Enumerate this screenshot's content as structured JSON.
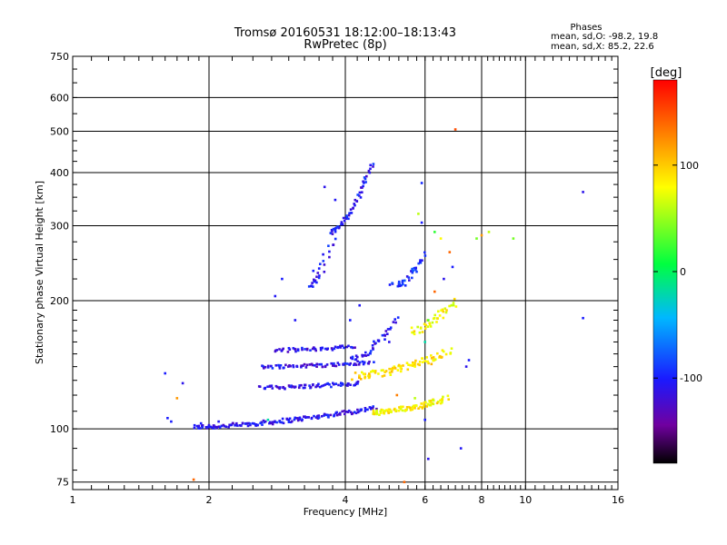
{
  "chart_data": {
    "type": "scatter",
    "title": "Tromsø 20160531 18:12:00–18:13:43",
    "subtitle": "RwPretec (8p)",
    "stats": {
      "heading": "Phases",
      "line1": "mean, sd,O: -98.2, 19.8",
      "line2": "mean, sd,X:  85.2, 22.6"
    },
    "xlabel": "Frequency [MHz]",
    "ylabel": "Stationary phase Virtual Height [km]",
    "x_scale": "log",
    "y_scale": "log",
    "xlim": [
      1,
      16
    ],
    "ylim": [
      72,
      750
    ],
    "x_ticks": [
      1,
      2,
      4,
      6,
      8,
      10,
      16
    ],
    "y_ticks": [
      75,
      100,
      200,
      300,
      400,
      500,
      600,
      750
    ],
    "grid": true,
    "colorbar": {
      "label": "[deg]",
      "range": [
        -180,
        180
      ],
      "ticks": [
        100,
        0,
        -100
      ]
    },
    "traces": [
      {
        "name": "",
        "x_range": [
          1.85,
          4.65
        ],
        "y_range": [
          101,
          112
        ],
        "phase": -110,
        "n": 150,
        "spread": 0.012
      },
      {
        "name": "",
        "x_range": [
          2.6,
          4.3
        ],
        "y_range": [
          125,
          128
        ],
        "phase": -110,
        "n": 70,
        "spread": 0.01
      },
      {
        "name": "",
        "x_range": [
          2.6,
          4.6
        ],
        "y_range": [
          140,
          143
        ],
        "phase": -110,
        "n": 70,
        "spread": 0.01
      },
      {
        "name": "",
        "x_range": [
          2.8,
          4.2
        ],
        "y_range": [
          153,
          156
        ],
        "phase": -110,
        "n": 50,
        "spread": 0.01
      },
      {
        "name": "",
        "x_range": [
          4.55,
          6.7
        ],
        "y_range": [
          109,
          118
        ],
        "phase": 85,
        "n": 90,
        "spread": 0.015
      },
      {
        "name": "",
        "x_range": [
          4.2,
          6.8
        ],
        "y_range": [
          133,
          152
        ],
        "phase": 90,
        "n": 90,
        "spread": 0.02
      },
      {
        "name": "",
        "x_range": [
          5.6,
          7.0
        ],
        "y_range": [
          170,
          200
        ],
        "phase": 80,
        "n": 40,
        "spread": 0.02
      },
      {
        "name": "",
        "x_range": [
          4.1,
          5.2
        ],
        "y_range": [
          145,
          180
        ],
        "phase": -105,
        "n": 40,
        "spread": 0.015
      },
      {
        "name": "",
        "x_range": [
          3.7,
          4.6
        ],
        "y_range": [
          290,
          420
        ],
        "phase": -105,
        "n": 55,
        "spread": 0.012
      },
      {
        "name": "",
        "x_range": [
          3.3,
          3.75
        ],
        "y_range": [
          215,
          280
        ],
        "phase": -105,
        "n": 25,
        "spread": 0.02
      },
      {
        "name": "",
        "x_range": [
          5.1,
          6.0
        ],
        "y_range": [
          215,
          255
        ],
        "phase": -95,
        "n": 35,
        "spread": 0.02
      }
    ],
    "points": [
      [
        1.6,
        135,
        -100
      ],
      [
        1.62,
        106,
        -100
      ],
      [
        1.65,
        104,
        -100
      ],
      [
        1.7,
        118,
        120
      ],
      [
        1.75,
        128,
        -110
      ],
      [
        1.92,
        103,
        -100
      ],
      [
        2.0,
        102,
        -110
      ],
      [
        2.1,
        104,
        -105
      ],
      [
        2.3,
        102,
        -110
      ],
      [
        2.5,
        103,
        -100
      ],
      [
        2.7,
        105,
        -20
      ],
      [
        2.8,
        205,
        -105
      ],
      [
        2.9,
        225,
        -100
      ],
      [
        3.1,
        180,
        -105
      ],
      [
        3.4,
        235,
        -100
      ],
      [
        3.6,
        370,
        -110
      ],
      [
        3.8,
        345,
        -105
      ],
      [
        4.1,
        180,
        -100
      ],
      [
        4.3,
        195,
        -105
      ],
      [
        5.0,
        160,
        -110
      ],
      [
        5.2,
        120,
        130
      ],
      [
        5.8,
        320,
        60
      ],
      [
        6.0,
        105,
        -100
      ],
      [
        6.1,
        85,
        -110
      ],
      [
        5.9,
        378,
        -95
      ],
      [
        5.9,
        305,
        -100
      ],
      [
        6.3,
        290,
        20
      ],
      [
        6.3,
        210,
        140
      ],
      [
        6.5,
        280,
        80
      ],
      [
        6.6,
        225,
        -110
      ],
      [
        6.8,
        260,
        140
      ],
      [
        6.9,
        240,
        -100
      ],
      [
        7.0,
        505,
        150
      ],
      [
        7.2,
        90,
        -105
      ],
      [
        7.4,
        140,
        -110
      ],
      [
        7.5,
        145,
        -100
      ],
      [
        7.8,
        280,
        40
      ],
      [
        8.0,
        285,
        120
      ],
      [
        8.3,
        290,
        60
      ],
      [
        9.4,
        280,
        40
      ],
      [
        13.4,
        360,
        -110
      ],
      [
        13.4,
        182,
        -100
      ],
      [
        6.2,
        142,
        110
      ],
      [
        5.4,
        75,
        140
      ],
      [
        1.85,
        76,
        140
      ],
      [
        5.7,
        118,
        60
      ],
      [
        6.1,
        180,
        30
      ],
      [
        6.0,
        160,
        -20
      ]
    ]
  }
}
